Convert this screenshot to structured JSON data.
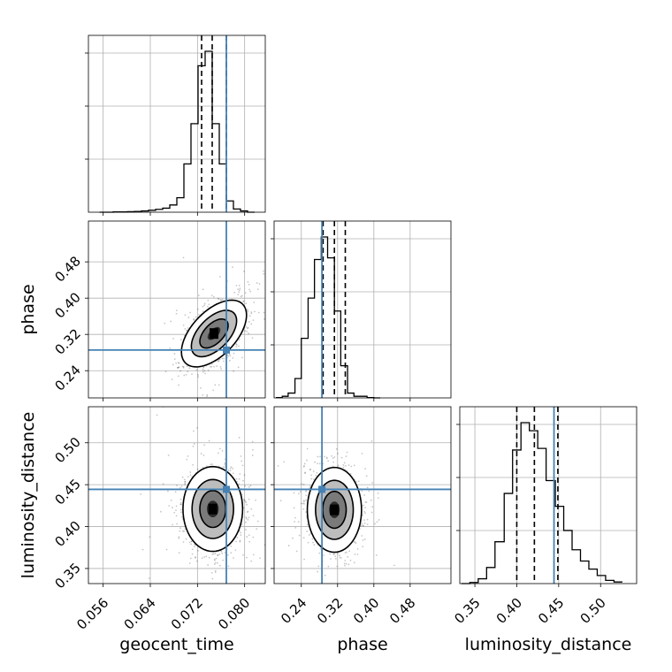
{
  "chart_data": {
    "type": "corner",
    "parameters": [
      "geocent_time",
      "phase",
      "luminosity_distance"
    ],
    "colors": {
      "truth": "#4682b4",
      "quantile": "#000000",
      "grid": "#b0b0b0",
      "samples": "#000000"
    },
    "grid": true,
    "ranges": {
      "geocent_time": [
        0.0535,
        0.0835
      ],
      "phase": [
        0.18,
        0.57
      ],
      "luminosity_distance": [
        0.332,
        0.543
      ]
    },
    "ticks": {
      "geocent_time": [
        "0.056",
        "0.064",
        "0.072",
        "0.080"
      ],
      "phase": [
        "0.24",
        "0.32",
        "0.40",
        "0.48"
      ],
      "luminosity_distance": [
        "0.35",
        "0.40",
        "0.45",
        "0.50"
      ]
    },
    "truths": {
      "geocent_time": 0.0769,
      "phase": 0.2855,
      "luminosity_distance": 0.4444
    },
    "quantiles": {
      "geocent_time": [
        0.0727,
        0.0745,
        0.0769
      ],
      "phase": [
        0.288,
        0.313,
        0.337
      ],
      "luminosity_distance": [
        0.4,
        0.421,
        0.449
      ]
    },
    "histograms": {
      "geocent_time": {
        "edges": [
          0.0554,
          0.0565,
          0.0577,
          0.0589,
          0.0601,
          0.0613,
          0.0625,
          0.0637,
          0.0649,
          0.0661,
          0.0673,
          0.0685,
          0.0697,
          0.0709,
          0.0721,
          0.0733,
          0.0745,
          0.0757,
          0.0769,
          0.0781,
          0.0793,
          0.0805,
          0.0817
        ],
        "counts": [
          0,
          0,
          0.2,
          0.2,
          0.3,
          0.5,
          0.8,
          1.2,
          1.8,
          2.5,
          4.5,
          9,
          30,
          55,
          91,
          100,
          55,
          30,
          7,
          2,
          0.8,
          0
        ]
      },
      "phase": {
        "edges": [
          0.184,
          0.198,
          0.211,
          0.226,
          0.24,
          0.255,
          0.269,
          0.284,
          0.298,
          0.313,
          0.327,
          0.342,
          0.356,
          0.371,
          0.385,
          0.4,
          0.414
        ],
        "counts": [
          0.2,
          1,
          3,
          12,
          37,
          62,
          86,
          100,
          87,
          54,
          20,
          3,
          1,
          1,
          0.2,
          0
        ]
      },
      "luminosity_distance": {
        "edges": [
          0.334,
          0.344,
          0.354,
          0.364,
          0.374,
          0.385,
          0.395,
          0.405,
          0.415,
          0.425,
          0.435,
          0.446,
          0.456,
          0.466,
          0.476,
          0.486,
          0.496,
          0.506,
          0.516,
          0.526
        ],
        "counts": [
          0,
          0.7,
          3,
          10,
          26,
          56,
          83,
          100,
          95,
          84,
          64,
          48,
          33,
          21,
          14,
          9,
          5,
          2,
          1
        ]
      }
    },
    "pairs": [
      {
        "x": "geocent_time",
        "y": "phase",
        "center": [
          0.0748,
          0.322
        ],
        "sigma": [
          0.0024,
          0.032
        ],
        "rho": 0.55
      },
      {
        "x": "geocent_time",
        "y": "luminosity_distance",
        "center": [
          0.0746,
          0.421
        ],
        "sigma": [
          0.0022,
          0.022
        ],
        "rho": 0.0
      },
      {
        "x": "phase",
        "y": "luminosity_distance",
        "center": [
          0.313,
          0.42
        ],
        "sigma": [
          0.026,
          0.022
        ],
        "rho": 0.0
      }
    ]
  }
}
